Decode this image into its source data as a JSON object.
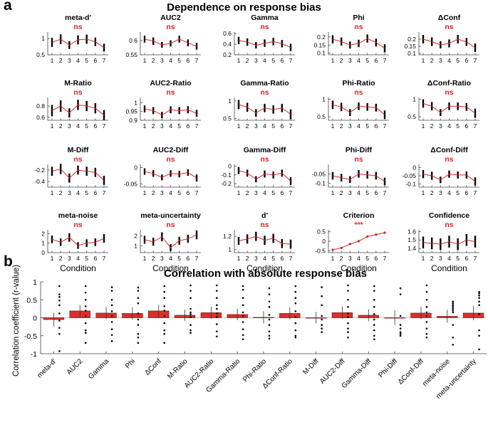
{
  "panel_a": {
    "letter": "a",
    "title": "Dependence on response bias",
    "xlabel": "Condition",
    "conditions": [
      "1",
      "2",
      "3",
      "4",
      "5",
      "6",
      "7"
    ]
  },
  "panel_b": {
    "letter": "b",
    "title": "Correlation with absolute response bias",
    "ylabel": "Correlation coefficient (r-value)"
  },
  "colors": {
    "accent": "#d62728",
    "bar": "#d9302c",
    "line": "#000000"
  },
  "chart_data": [
    {
      "type": "line",
      "panel": "a",
      "x": [
        1,
        2,
        3,
        4,
        5,
        6,
        7
      ],
      "subplots": [
        {
          "title": "meta-d'",
          "sig": "ns",
          "ylim": [
            0.5,
            1.2
          ],
          "yticks": [
            0.5,
            1
          ],
          "yticklabels": [
            "0.5",
            "1"
          ],
          "values": [
            0.88,
            0.98,
            0.8,
            0.96,
            0.98,
            0.9,
            0.72
          ],
          "err": [
            0.14,
            0.15,
            0.12,
            0.14,
            0.14,
            0.13,
            0.12
          ]
        },
        {
          "title": "AUC2",
          "sig": "ns",
          "ylim": [
            0.55,
            0.63
          ],
          "yticks": [
            0.55,
            0.6
          ],
          "yticklabels": [
            "0.55",
            "0.6"
          ],
          "values": [
            0.605,
            0.598,
            0.585,
            0.59,
            0.605,
            0.592,
            0.58
          ],
          "err": [
            0.012,
            0.013,
            0.01,
            0.011,
            0.012,
            0.012,
            0.012
          ]
        },
        {
          "title": "Gamma",
          "sig": "ns",
          "ylim": [
            0.2,
            0.63
          ],
          "yticks": [
            0.2,
            0.4,
            0.6
          ],
          "yticklabels": [
            "0.2",
            "0.4",
            "0.6"
          ],
          "values": [
            0.47,
            0.44,
            0.38,
            0.42,
            0.45,
            0.41,
            0.34
          ],
          "err": [
            0.07,
            0.07,
            0.06,
            0.07,
            0.07,
            0.07,
            0.07
          ]
        },
        {
          "title": "Phi",
          "sig": "ns",
          "ylim": [
            0.09,
            0.23
          ],
          "yticks": [
            0.1,
            0.15,
            0.2
          ],
          "yticklabels": [
            "0.1",
            "0.15",
            "0.2"
          ],
          "values": [
            0.185,
            0.172,
            0.15,
            0.16,
            0.19,
            0.165,
            0.13
          ],
          "err": [
            0.025,
            0.025,
            0.022,
            0.023,
            0.025,
            0.024,
            0.025
          ]
        },
        {
          "title": "ΔConf",
          "sig": "ns",
          "ylim": [
            0.09,
            0.25
          ],
          "yticks": [
            0.1,
            0.15,
            0.2
          ],
          "yticklabels": [
            "0.1",
            "0.15",
            "0.2"
          ],
          "values": [
            0.2,
            0.182,
            0.16,
            0.17,
            0.2,
            0.18,
            0.14
          ],
          "err": [
            0.03,
            0.03,
            0.025,
            0.028,
            0.03,
            0.028,
            0.03
          ]
        },
        {
          "title": "M-Ratio",
          "sig": "ns",
          "ylim": [
            0.55,
            0.95
          ],
          "yticks": [
            0.6,
            0.8
          ],
          "yticklabels": [
            "0.6",
            "0.8"
          ],
          "values": [
            0.72,
            0.8,
            0.68,
            0.82,
            0.8,
            0.76,
            0.64
          ],
          "err": [
            0.1,
            0.1,
            0.08,
            0.09,
            0.09,
            0.09,
            0.09
          ]
        },
        {
          "title": "AUC2-Ratio",
          "sig": "ns",
          "ylim": [
            0.9,
            1.03
          ],
          "yticks": [
            0.9,
            0.95,
            1
          ],
          "yticklabels": [
            "0.9",
            "0.95",
            "1"
          ],
          "values": [
            0.965,
            0.955,
            0.93,
            0.96,
            0.955,
            0.96,
            0.94
          ],
          "err": [
            0.02,
            0.02,
            0.018,
            0.02,
            0.02,
            0.02,
            0.02
          ]
        },
        {
          "title": "Gamma-Ratio",
          "sig": "ns",
          "ylim": [
            0.45,
            1.1
          ],
          "yticks": [
            0.5,
            1
          ],
          "yticklabels": [
            "0.5",
            "1"
          ],
          "values": [
            0.9,
            0.82,
            0.66,
            0.8,
            0.76,
            0.8,
            0.62
          ],
          "err": [
            0.13,
            0.13,
            0.11,
            0.12,
            0.12,
            0.12,
            0.14
          ]
        },
        {
          "title": "Phi-Ratio",
          "sig": "ns",
          "ylim": [
            0.4,
            1.05
          ],
          "yticks": [
            0.5,
            1
          ],
          "yticklabels": [
            "0.5",
            "1"
          ],
          "values": [
            0.84,
            0.78,
            0.62,
            0.8,
            0.78,
            0.76,
            0.56
          ],
          "err": [
            0.12,
            0.12,
            0.1,
            0.11,
            0.11,
            0.11,
            0.12
          ]
        },
        {
          "title": "ΔConf-Ratio",
          "sig": "ns",
          "ylim": [
            0.4,
            1.05
          ],
          "yticks": [
            0.5,
            1
          ],
          "yticklabels": [
            "0.5",
            "1"
          ],
          "values": [
            0.88,
            0.8,
            0.62,
            0.8,
            0.8,
            0.78,
            0.6
          ],
          "err": [
            0.12,
            0.12,
            0.1,
            0.11,
            0.11,
            0.11,
            0.13
          ]
        },
        {
          "title": "M-Diff",
          "sig": "ns",
          "ylim": [
            -0.5,
            -0.1
          ],
          "yticks": [
            -0.4,
            -0.2
          ],
          "yticklabels": [
            "-0.4",
            "-0.2"
          ],
          "values": [
            -0.22,
            -0.18,
            -0.34,
            -0.2,
            -0.22,
            -0.24,
            -0.38
          ],
          "err": [
            0.08,
            0.09,
            0.08,
            0.08,
            0.08,
            0.08,
            0.08
          ]
        },
        {
          "title": "AUC2-Diff",
          "sig": "ns",
          "ylim": [
            -0.06,
            0.01
          ],
          "yticks": [
            -0.05,
            0
          ],
          "yticklabels": [
            "-0.05",
            "0"
          ],
          "values": [
            -0.012,
            -0.018,
            -0.03,
            -0.018,
            -0.02,
            -0.015,
            -0.032
          ],
          "err": [
            0.01,
            0.01,
            0.009,
            0.01,
            0.01,
            0.01,
            0.011
          ]
        },
        {
          "title": "Gamma-Diff",
          "sig": "ns",
          "ylim": [
            -0.24,
            0.02
          ],
          "yticks": [
            -0.2,
            -0.1,
            0
          ],
          "yticklabels": [
            "-0.2",
            "-0.1",
            "0"
          ],
          "values": [
            -0.05,
            -0.08,
            -0.15,
            -0.09,
            -0.1,
            -0.08,
            -0.17
          ],
          "err": [
            0.04,
            0.04,
            0.035,
            0.04,
            0.04,
            0.04,
            0.045
          ]
        },
        {
          "title": "Phi-Diff",
          "sig": "ns",
          "ylim": [
            -0.12,
            0.0
          ],
          "yticks": [
            -0.1,
            -0.05
          ],
          "yticklabels": [
            "-0.1",
            "-0.05"
          ],
          "values": [
            -0.06,
            -0.07,
            -0.08,
            -0.05,
            -0.055,
            -0.06,
            -0.09
          ],
          "err": [
            0.02,
            0.02,
            0.018,
            0.02,
            0.02,
            0.02,
            0.02
          ]
        },
        {
          "title": "ΔConf-Diff",
          "sig": "ns",
          "ylim": [
            -0.12,
            0.02
          ],
          "yticks": [
            -0.1,
            -0.05,
            0
          ],
          "yticklabels": [
            "-0.1",
            "-0.05",
            "0"
          ],
          "values": [
            -0.04,
            -0.05,
            -0.075,
            -0.04,
            -0.045,
            -0.045,
            -0.085
          ],
          "err": [
            0.025,
            0.025,
            0.02,
            0.022,
            0.022,
            0.022,
            0.025
          ]
        },
        {
          "title": "meta-noise",
          "sig": "ns",
          "ylim": [
            0,
            2.4
          ],
          "yticks": [
            0,
            1,
            2
          ],
          "yticklabels": [
            "0",
            "1",
            "2"
          ],
          "values": [
            1.4,
            1.1,
            1.6,
            0.75,
            1.0,
            1.1,
            1.5
          ],
          "err": [
            0.4,
            0.4,
            0.45,
            0.35,
            0.4,
            0.4,
            0.45
          ]
        },
        {
          "title": "meta-uncertainty",
          "sig": "ns",
          "ylim": [
            0.3,
            2.6
          ],
          "yticks": [
            1,
            2
          ],
          "yticklabels": [
            "1",
            "2"
          ],
          "values": [
            1.6,
            1.4,
            1.9,
            0.8,
            1.5,
            1.7,
            2.1
          ],
          "err": [
            0.4,
            0.4,
            0.45,
            0.35,
            0.4,
            0.4,
            0.45
          ]
        },
        {
          "title": "d'",
          "sig": "ns",
          "ylim": [
            0.95,
            1.3
          ],
          "yticks": [
            1,
            1.2
          ],
          "yticklabels": [
            "1",
            "1.2"
          ],
          "values": [
            1.13,
            1.16,
            1.2,
            1.14,
            1.17,
            1.09,
            1.08
          ],
          "err": [
            0.06,
            0.07,
            0.07,
            0.07,
            0.07,
            0.07,
            0.07
          ]
        },
        {
          "title": "Criterion",
          "sig": "***",
          "ylim": [
            -0.6,
            0.6
          ],
          "yticks": [
            -0.5,
            0,
            0.5
          ],
          "yticklabels": [
            "-0.5",
            "0",
            "0.5"
          ],
          "values": [
            -0.45,
            -0.35,
            -0.15,
            0.0,
            0.25,
            0.35,
            0.45
          ],
          "err": [
            0.05,
            0.05,
            0.05,
            0.05,
            0.05,
            0.05,
            0.05
          ]
        },
        {
          "title": "Confidence",
          "sig": "ns",
          "ylim": [
            1.35,
            1.62
          ],
          "yticks": [
            1.4,
            1.5,
            1.6
          ],
          "yticklabels": [
            "1.4",
            "1.5",
            "1.6"
          ],
          "values": [
            1.47,
            1.46,
            1.45,
            1.48,
            1.45,
            1.5,
            1.48
          ],
          "err": [
            0.07,
            0.07,
            0.07,
            0.07,
            0.07,
            0.07,
            0.07
          ]
        }
      ]
    },
    {
      "type": "bar",
      "panel": "b",
      "title": "Correlation with absolute response bias",
      "ylabel": "Correlation coefficient (r-value)",
      "ylim": [
        -1,
        1
      ],
      "yticks": [
        -1,
        -0.5,
        0,
        0.5,
        1
      ],
      "yticklabels": [
        "-1",
        "-0.5",
        "0",
        "0.5",
        "1"
      ],
      "categories": [
        "meta-d'",
        "AUC2",
        "Gamma",
        "Phi",
        "ΔConf",
        "M-Ratio",
        "AUC2-Ratio",
        "Gamma-Ratio",
        "Phi-Ratio",
        "ΔConf-Ratio",
        "M-Diff",
        "AUC2-Diff",
        "Gamma-Diff",
        "Phi-Diff",
        "ΔConf-Diff",
        "meta-noise",
        "meta-uncertainty"
      ],
      "values": [
        -0.05,
        0.19,
        0.13,
        0.12,
        0.19,
        0.07,
        0.14,
        0.09,
        0.01,
        0.12,
        0.0,
        0.14,
        0.07,
        0.0,
        0.13,
        0.04,
        0.13
      ],
      "err": [
        0.19,
        0.17,
        0.17,
        0.17,
        0.17,
        0.16,
        0.17,
        0.16,
        0.17,
        0.17,
        0.16,
        0.17,
        0.17,
        0.2,
        0.17,
        0.18,
        0.2
      ],
      "points": [
        [
          0.88,
          0.65,
          0.58,
          0.48,
          0.35,
          0.12,
          -0.08,
          -0.28,
          -0.45,
          -0.93
        ],
        [
          0.88,
          0.7,
          0.5,
          0.32,
          0.2,
          0.05,
          -0.15,
          -0.35,
          -0.42,
          -0.7
        ],
        [
          0.85,
          0.75,
          0.5,
          0.35,
          0.18,
          0.05,
          -0.12,
          -0.32,
          -0.48,
          -0.65
        ],
        [
          0.84,
          0.75,
          0.55,
          0.4,
          0.12,
          -0.05,
          -0.2,
          -0.45,
          -0.55,
          -0.7
        ],
        [
          0.88,
          0.72,
          0.55,
          0.32,
          0.2,
          0.05,
          -0.15,
          -0.35,
          -0.45,
          -0.7
        ],
        [
          0.9,
          0.75,
          0.55,
          0.25,
          0.15,
          0.1,
          0.02,
          -0.2,
          -0.35,
          -0.42
        ],
        [
          0.9,
          0.75,
          0.55,
          0.35,
          0.25,
          0.12,
          0.02,
          -0.18,
          -0.38,
          -0.52
        ],
        [
          0.88,
          0.78,
          0.55,
          0.35,
          0.15,
          0.05,
          -0.12,
          -0.32,
          -0.48,
          -0.6
        ],
        [
          0.82,
          0.65,
          0.45,
          0.3,
          0.08,
          -0.05,
          -0.2,
          -0.38,
          -0.5,
          -0.58
        ],
        [
          0.88,
          0.72,
          0.55,
          0.4,
          0.18,
          0.02,
          -0.15,
          -0.35,
          -0.5,
          -0.55
        ],
        [
          0.85,
          0.6,
          0.35,
          0.05,
          -0.05,
          -0.2,
          -0.3,
          -0.4
        ],
        [
          0.9,
          0.75,
          0.5,
          0.3,
          0.12,
          0.02,
          -0.15,
          -0.3,
          -0.4,
          -0.55
        ],
        [
          0.88,
          0.75,
          0.5,
          0.3,
          0.1,
          -0.05,
          -0.2,
          -0.35,
          -0.5,
          -0.6
        ],
        [
          0.82,
          0.65,
          0.05,
          -0.2,
          -0.3,
          -0.4,
          -0.45,
          -0.5
        ],
        [
          0.9,
          0.72,
          0.5,
          0.3,
          0.15,
          0.05,
          -0.12,
          -0.3,
          -0.45,
          -0.55
        ],
        [
          0.45,
          0.4,
          0.35,
          0.3,
          0.25,
          0.2,
          0.15,
          -0.2,
          -0.55,
          -0.75
        ],
        [
          0.72,
          0.68,
          0.62,
          0.55,
          0.45,
          0.35,
          0.1,
          -0.35,
          -0.5,
          -0.88
        ]
      ]
    }
  ]
}
